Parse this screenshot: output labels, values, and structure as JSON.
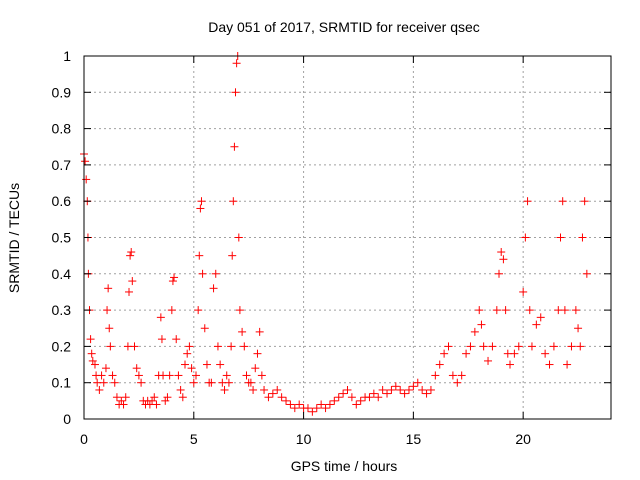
{
  "chart_data": {
    "type": "scatter",
    "title": "Day 051 of 2017, SRMTID for receiver qsec",
    "xlabel": "GPS time / hours",
    "ylabel": "SRMTID / TECUs",
    "xlim": [
      0,
      24
    ],
    "ylim": [
      0,
      1
    ],
    "xticks": [
      0,
      5,
      10,
      15,
      20
    ],
    "xtick_labels": [
      "0",
      "5",
      "10",
      "15",
      "20"
    ],
    "yticks": [
      0,
      0.1,
      0.2,
      0.3,
      0.4,
      0.5,
      0.6,
      0.7,
      0.8,
      0.9,
      1
    ],
    "ytick_labels": [
      "0",
      "0.1",
      "0.2",
      "0.3",
      "0.4",
      "0.5",
      "0.6",
      "0.7",
      "0.8",
      "0.9",
      "1"
    ],
    "grid": true,
    "marker": "+",
    "color": "#ff0000",
    "series": [
      {
        "name": "SRMTID",
        "points": [
          [
            0.0,
            0.73
          ],
          [
            0.05,
            0.71
          ],
          [
            0.1,
            0.66
          ],
          [
            0.15,
            0.6
          ],
          [
            0.18,
            0.5
          ],
          [
            0.2,
            0.4
          ],
          [
            0.25,
            0.3
          ],
          [
            0.3,
            0.22
          ],
          [
            0.35,
            0.18
          ],
          [
            0.4,
            0.16
          ],
          [
            0.5,
            0.15
          ],
          [
            0.55,
            0.12
          ],
          [
            0.6,
            0.1
          ],
          [
            0.7,
            0.08
          ],
          [
            0.8,
            0.12
          ],
          [
            0.9,
            0.1
          ],
          [
            1.0,
            0.14
          ],
          [
            1.05,
            0.3
          ],
          [
            1.1,
            0.36
          ],
          [
            1.15,
            0.25
          ],
          [
            1.2,
            0.2
          ],
          [
            1.3,
            0.12
          ],
          [
            1.4,
            0.1
          ],
          [
            1.5,
            0.06
          ],
          [
            1.6,
            0.04
          ],
          [
            1.7,
            0.05
          ],
          [
            1.8,
            0.04
          ],
          [
            1.9,
            0.06
          ],
          [
            2.0,
            0.2
          ],
          [
            2.05,
            0.35
          ],
          [
            2.1,
            0.45
          ],
          [
            2.15,
            0.46
          ],
          [
            2.2,
            0.38
          ],
          [
            2.3,
            0.2
          ],
          [
            2.4,
            0.14
          ],
          [
            2.5,
            0.12
          ],
          [
            2.6,
            0.1
          ],
          [
            2.7,
            0.05
          ],
          [
            2.8,
            0.04
          ],
          [
            2.9,
            0.05
          ],
          [
            3.0,
            0.04
          ],
          [
            3.1,
            0.05
          ],
          [
            3.2,
            0.06
          ],
          [
            3.3,
            0.04
          ],
          [
            3.4,
            0.12
          ],
          [
            3.5,
            0.28
          ],
          [
            3.55,
            0.22
          ],
          [
            3.6,
            0.12
          ],
          [
            3.7,
            0.05
          ],
          [
            3.8,
            0.06
          ],
          [
            3.9,
            0.12
          ],
          [
            4.0,
            0.3
          ],
          [
            4.05,
            0.38
          ],
          [
            4.1,
            0.39
          ],
          [
            4.2,
            0.22
          ],
          [
            4.3,
            0.12
          ],
          [
            4.4,
            0.08
          ],
          [
            4.5,
            0.06
          ],
          [
            4.6,
            0.15
          ],
          [
            4.7,
            0.18
          ],
          [
            4.8,
            0.2
          ],
          [
            4.9,
            0.14
          ],
          [
            5.0,
            0.1
          ],
          [
            5.1,
            0.12
          ],
          [
            5.2,
            0.3
          ],
          [
            5.25,
            0.45
          ],
          [
            5.3,
            0.58
          ],
          [
            5.35,
            0.6
          ],
          [
            5.4,
            0.4
          ],
          [
            5.5,
            0.25
          ],
          [
            5.6,
            0.15
          ],
          [
            5.7,
            0.1
          ],
          [
            5.8,
            0.1
          ],
          [
            5.9,
            0.36
          ],
          [
            6.0,
            0.4
          ],
          [
            6.1,
            0.2
          ],
          [
            6.2,
            0.15
          ],
          [
            6.3,
            0.1
          ],
          [
            6.4,
            0.08
          ],
          [
            6.5,
            0.12
          ],
          [
            6.6,
            0.1
          ],
          [
            6.7,
            0.2
          ],
          [
            6.75,
            0.45
          ],
          [
            6.8,
            0.6
          ],
          [
            6.85,
            0.75
          ],
          [
            6.9,
            0.9
          ],
          [
            6.95,
            0.98
          ],
          [
            7.0,
            1.0
          ],
          [
            7.05,
            0.5
          ],
          [
            7.1,
            0.3
          ],
          [
            7.2,
            0.24
          ],
          [
            7.3,
            0.2
          ],
          [
            7.4,
            0.12
          ],
          [
            7.5,
            0.1
          ],
          [
            7.6,
            0.1
          ],
          [
            7.7,
            0.08
          ],
          [
            7.8,
            0.14
          ],
          [
            7.9,
            0.18
          ],
          [
            8.0,
            0.24
          ],
          [
            8.1,
            0.12
          ],
          [
            8.2,
            0.08
          ],
          [
            8.4,
            0.06
          ],
          [
            8.6,
            0.07
          ],
          [
            8.8,
            0.08
          ],
          [
            9.0,
            0.06
          ],
          [
            9.2,
            0.05
          ],
          [
            9.4,
            0.04
          ],
          [
            9.6,
            0.03
          ],
          [
            9.8,
            0.04
          ],
          [
            10.0,
            0.03
          ],
          [
            10.2,
            0.03
          ],
          [
            10.4,
            0.02
          ],
          [
            10.6,
            0.03
          ],
          [
            10.8,
            0.04
          ],
          [
            11.0,
            0.03
          ],
          [
            11.2,
            0.04
          ],
          [
            11.4,
            0.05
          ],
          [
            11.6,
            0.06
          ],
          [
            11.8,
            0.07
          ],
          [
            12.0,
            0.08
          ],
          [
            12.2,
            0.06
          ],
          [
            12.4,
            0.04
          ],
          [
            12.6,
            0.05
          ],
          [
            12.8,
            0.06
          ],
          [
            13.0,
            0.06
          ],
          [
            13.2,
            0.07
          ],
          [
            13.4,
            0.06
          ],
          [
            13.6,
            0.08
          ],
          [
            13.8,
            0.07
          ],
          [
            14.0,
            0.08
          ],
          [
            14.2,
            0.09
          ],
          [
            14.4,
            0.08
          ],
          [
            14.6,
            0.07
          ],
          [
            14.8,
            0.08
          ],
          [
            15.0,
            0.09
          ],
          [
            15.2,
            0.1
          ],
          [
            15.4,
            0.08
          ],
          [
            15.6,
            0.07
          ],
          [
            15.8,
            0.08
          ],
          [
            16.0,
            0.12
          ],
          [
            16.2,
            0.15
          ],
          [
            16.4,
            0.18
          ],
          [
            16.6,
            0.2
          ],
          [
            16.8,
            0.12
          ],
          [
            17.0,
            0.1
          ],
          [
            17.2,
            0.12
          ],
          [
            17.4,
            0.18
          ],
          [
            17.6,
            0.2
          ],
          [
            17.8,
            0.24
          ],
          [
            18.0,
            0.3
          ],
          [
            18.1,
            0.26
          ],
          [
            18.2,
            0.2
          ],
          [
            18.4,
            0.16
          ],
          [
            18.6,
            0.2
          ],
          [
            18.8,
            0.3
          ],
          [
            18.9,
            0.4
          ],
          [
            19.0,
            0.46
          ],
          [
            19.1,
            0.44
          ],
          [
            19.2,
            0.3
          ],
          [
            19.3,
            0.18
          ],
          [
            19.4,
            0.15
          ],
          [
            19.6,
            0.18
          ],
          [
            19.8,
            0.2
          ],
          [
            20.0,
            0.35
          ],
          [
            20.1,
            0.5
          ],
          [
            20.2,
            0.6
          ],
          [
            20.3,
            0.3
          ],
          [
            20.4,
            0.2
          ],
          [
            20.6,
            0.26
          ],
          [
            20.8,
            0.28
          ],
          [
            21.0,
            0.18
          ],
          [
            21.2,
            0.15
          ],
          [
            21.4,
            0.2
          ],
          [
            21.6,
            0.3
          ],
          [
            21.7,
            0.5
          ],
          [
            21.8,
            0.6
          ],
          [
            21.9,
            0.3
          ],
          [
            22.0,
            0.15
          ],
          [
            22.2,
            0.2
          ],
          [
            22.4,
            0.3
          ],
          [
            22.5,
            0.25
          ],
          [
            22.6,
            0.2
          ],
          [
            22.7,
            0.5
          ],
          [
            22.8,
            0.6
          ],
          [
            22.9,
            0.4
          ]
        ]
      }
    ]
  }
}
